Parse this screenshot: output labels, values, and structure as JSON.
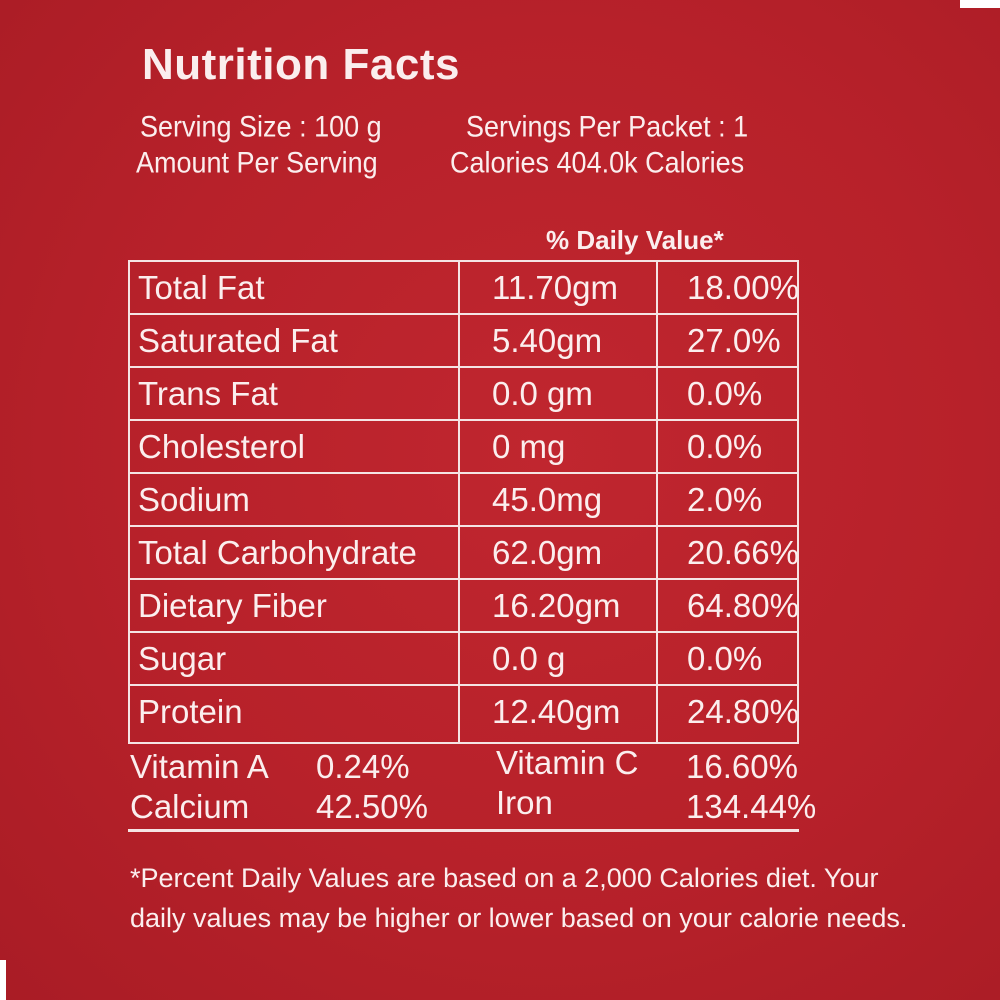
{
  "title": "Nutrition Facts",
  "serving_size": "Serving Size : 100 g",
  "servings_per_packet": "Servings Per Packet : 1",
  "amount_per_serving": "Amount Per Serving",
  "calories": "Calories 404.0k Calories",
  "daily_value_header": "% Daily Value*",
  "nutrients": [
    {
      "name": "Total Fat",
      "amount": "11.70gm",
      "dv": "18.00%"
    },
    {
      "name": "Saturated Fat",
      "amount": "5.40gm",
      "dv": "27.0%"
    },
    {
      "name": "Trans Fat",
      "amount": "0.0 gm",
      "dv": "0.0%"
    },
    {
      "name": "Cholesterol",
      "amount": "0 mg",
      "dv": "0.0%"
    },
    {
      "name": "Sodium",
      "amount": "45.0mg",
      "dv": "2.0%"
    },
    {
      "name": "Total Carbohydrate",
      "amount": "62.0gm",
      "dv": "20.66%"
    },
    {
      "name": "Dietary Fiber",
      "amount": "16.20gm",
      "dv": "64.80%"
    },
    {
      "name": "Sugar",
      "amount": "0.0 g",
      "dv": "0.0%"
    },
    {
      "name": "Protein",
      "amount": "12.40gm",
      "dv": "24.80%"
    }
  ],
  "vitamins": [
    {
      "name": "Vitamin A",
      "value": "0.24%"
    },
    {
      "name": "Vitamin C",
      "value": "16.60%"
    },
    {
      "name": "Calcium",
      "value": "42.50%"
    },
    {
      "name": "Iron",
      "value": "134.44%"
    }
  ],
  "footnote": "*Percent Daily Values are based on a 2,000 Calories diet. Your daily values may be higher or lower based on your calorie needs."
}
